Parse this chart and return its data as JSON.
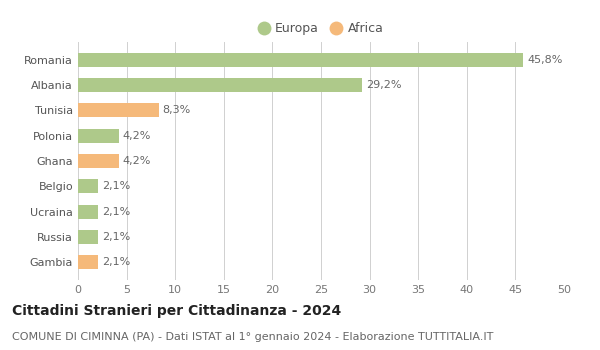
{
  "categories": [
    "Romania",
    "Albania",
    "Tunisia",
    "Polonia",
    "Ghana",
    "Belgio",
    "Ucraina",
    "Russia",
    "Gambia"
  ],
  "values": [
    45.8,
    29.2,
    8.3,
    4.2,
    4.2,
    2.1,
    2.1,
    2.1,
    2.1
  ],
  "labels": [
    "45,8%",
    "29,2%",
    "8,3%",
    "4,2%",
    "4,2%",
    "2,1%",
    "2,1%",
    "2,1%",
    "2,1%"
  ],
  "continent": [
    "Europa",
    "Europa",
    "Africa",
    "Europa",
    "Africa",
    "Europa",
    "Europa",
    "Europa",
    "Africa"
  ],
  "color_europa": "#aec98a",
  "color_africa": "#f5b97a",
  "background_color": "#ffffff",
  "grid_color": "#d0d0d0",
  "xlim": [
    0,
    50
  ],
  "xticks": [
    0,
    5,
    10,
    15,
    20,
    25,
    30,
    35,
    40,
    45,
    50
  ],
  "title": "Cittadini Stranieri per Cittadinanza - 2024",
  "subtitle": "COMUNE DI CIMINNA (PA) - Dati ISTAT al 1° gennaio 2024 - Elaborazione TUTTITALIA.IT",
  "title_fontsize": 10,
  "subtitle_fontsize": 8,
  "legend_fontsize": 9,
  "tick_fontsize": 8,
  "label_fontsize": 8,
  "bar_height": 0.55
}
